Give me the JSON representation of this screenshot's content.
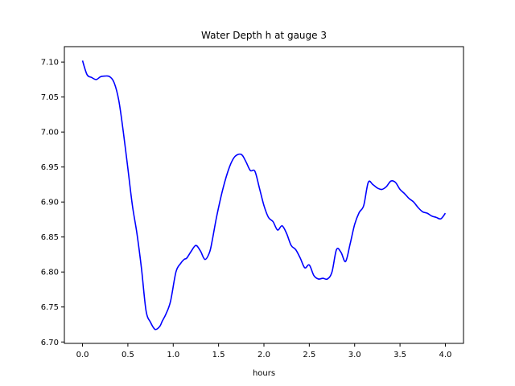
{
  "chart_data": {
    "type": "line",
    "title": "Water Depth h at gauge 3",
    "xlabel": "hours",
    "ylabel": "",
    "xlim": [
      -0.2,
      4.2
    ],
    "ylim": [
      6.698,
      7.122
    ],
    "xticks": [
      0.0,
      0.5,
      1.0,
      1.5,
      2.0,
      2.5,
      3.0,
      3.5,
      4.0
    ],
    "xtick_labels": [
      "0.0",
      "0.5",
      "1.0",
      "1.5",
      "2.0",
      "2.5",
      "3.0",
      "3.5",
      "4.0"
    ],
    "yticks": [
      6.7,
      6.75,
      6.8,
      6.85,
      6.9,
      6.95,
      7.0,
      7.05,
      7.1
    ],
    "ytick_labels": [
      "6.70",
      "6.75",
      "6.80",
      "6.85",
      "6.90",
      "6.95",
      "7.00",
      "7.05",
      "7.10"
    ],
    "grid": false,
    "series": [
      {
        "color": "#0000ff",
        "x": [
          0.0,
          0.05,
          0.1,
          0.15,
          0.2,
          0.25,
          0.3,
          0.35,
          0.4,
          0.45,
          0.5,
          0.55,
          0.6,
          0.65,
          0.7,
          0.75,
          0.8,
          0.85,
          0.88,
          0.92,
          0.97,
          1.03,
          1.08,
          1.12,
          1.15,
          1.2,
          1.25,
          1.3,
          1.35,
          1.4,
          1.43,
          1.48,
          1.55,
          1.62,
          1.68,
          1.75,
          1.8,
          1.85,
          1.9,
          1.95,
          2.0,
          2.05,
          2.1,
          2.15,
          2.2,
          2.25,
          2.3,
          2.35,
          2.4,
          2.45,
          2.5,
          2.55,
          2.6,
          2.65,
          2.7,
          2.75,
          2.8,
          2.85,
          2.9,
          2.95,
          3.0,
          3.05,
          3.1,
          3.15,
          3.2,
          3.25,
          3.3,
          3.35,
          3.4,
          3.45,
          3.5,
          3.55,
          3.6,
          3.65,
          3.7,
          3.75,
          3.8,
          3.85,
          3.9,
          3.95,
          4.0
        ],
        "y": [
          7.102,
          7.082,
          7.078,
          7.075,
          7.079,
          7.08,
          7.079,
          7.07,
          7.045,
          7.0,
          6.948,
          6.895,
          6.855,
          6.805,
          6.745,
          6.728,
          6.718,
          6.722,
          6.73,
          6.74,
          6.758,
          6.8,
          6.812,
          6.818,
          6.82,
          6.83,
          6.838,
          6.83,
          6.818,
          6.828,
          6.845,
          6.88,
          6.92,
          6.95,
          6.965,
          6.968,
          6.958,
          6.945,
          6.944,
          6.92,
          6.895,
          6.878,
          6.872,
          6.86,
          6.866,
          6.855,
          6.838,
          6.832,
          6.82,
          6.806,
          6.81,
          6.795,
          6.79,
          6.791,
          6.79,
          6.8,
          6.832,
          6.828,
          6.815,
          6.84,
          6.868,
          6.885,
          6.895,
          6.928,
          6.925,
          6.92,
          6.918,
          6.922,
          6.93,
          6.928,
          6.918,
          6.912,
          6.905,
          6.9,
          6.892,
          6.886,
          6.884,
          6.88,
          6.878,
          6.876,
          6.884
        ]
      }
    ]
  }
}
